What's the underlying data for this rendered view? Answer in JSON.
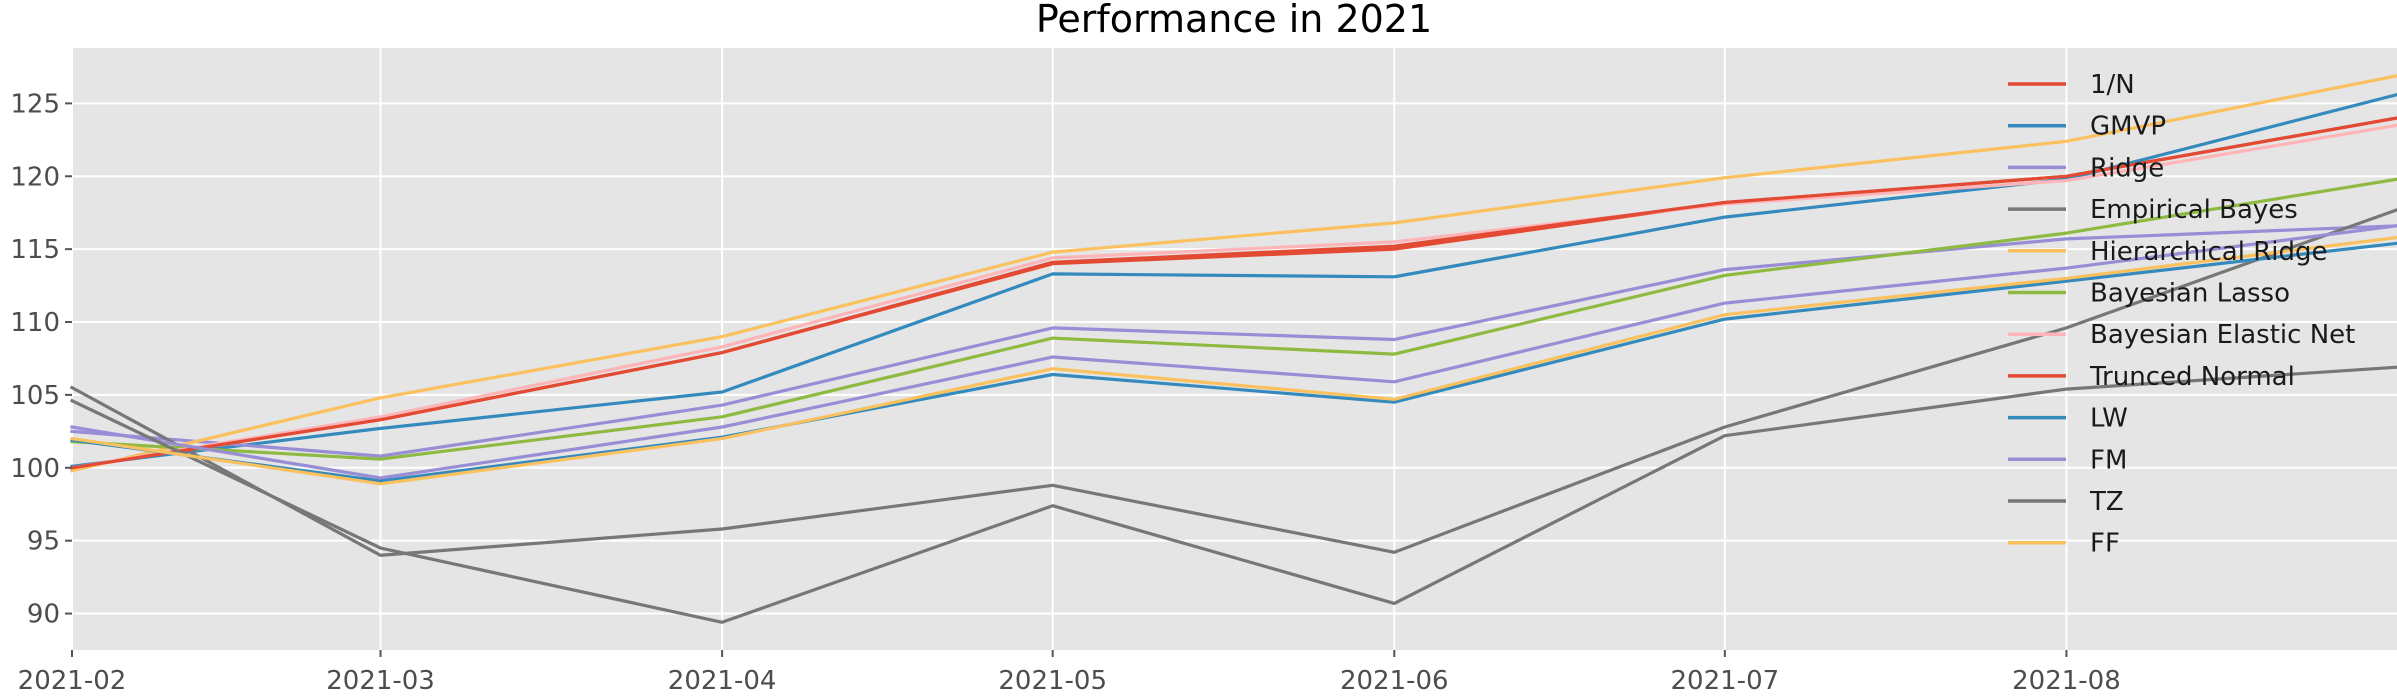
{
  "chart_data": {
    "type": "line",
    "title": "Performance in 2021",
    "xlabel": "",
    "ylabel": "",
    "x": [
      "2021-02-01",
      "2021-03-01",
      "2021-04-01",
      "2021-05-01",
      "2021-06-01",
      "2021-07-01",
      "2021-08-01",
      "2021-08-31"
    ],
    "xlim": [
      "2021-02-01",
      "2021-08-31"
    ],
    "ylim": [
      87.5,
      128.8
    ],
    "x_ticks": [
      "2021-02-01",
      "2021-03-01",
      "2021-04-01",
      "2021-05-01",
      "2021-06-01",
      "2021-07-01",
      "2021-08-01"
    ],
    "x_tick_labels": [
      "2021-02",
      "2021-03",
      "2021-04",
      "2021-05",
      "2021-06",
      "2021-07",
      "2021-08"
    ],
    "y_ticks": [
      90,
      95,
      100,
      105,
      110,
      115,
      120,
      125
    ],
    "y_tick_labels": [
      "90",
      "95",
      "100",
      "105",
      "110",
      "115",
      "120",
      "125"
    ],
    "grid": true,
    "style": "ggplot",
    "legend_position": "upper right",
    "series": [
      {
        "name": "1/N",
        "color": "#E24A33",
        "values": [
          100.0,
          103.3,
          107.9,
          114.0,
          115.0,
          118.2,
          120.0,
          124.0
        ]
      },
      {
        "name": "GMVP",
        "color": "#348ABD",
        "values": [
          100.1,
          102.7,
          105.2,
          113.3,
          113.1,
          117.2,
          119.8,
          125.6
        ]
      },
      {
        "name": "Ridge",
        "color": "#988ED5",
        "values": [
          102.5,
          100.8,
          104.3,
          109.6,
          108.8,
          113.6,
          115.7,
          116.6
        ]
      },
      {
        "name": "Empirical Bayes",
        "color": "#777777",
        "values": [
          105.5,
          94.0,
          95.8,
          98.8,
          94.2,
          102.8,
          109.6,
          117.7
        ]
      },
      {
        "name": "Hierarchical Ridge",
        "color": "#FBC15E",
        "values": [
          99.8,
          104.8,
          109.0,
          114.8,
          116.8,
          119.9,
          122.4,
          126.9
        ]
      },
      {
        "name": "Bayesian Lasso",
        "color": "#8EBA42",
        "values": [
          101.8,
          100.6,
          103.5,
          108.9,
          107.8,
          113.2,
          116.1,
          119.8
        ]
      },
      {
        "name": "Bayesian Elastic Net",
        "color": "#FFB5B8",
        "values": [
          100.0,
          103.5,
          108.3,
          114.4,
          115.5,
          118.1,
          119.7,
          123.5
        ]
      },
      {
        "name": "Trunced Normal",
        "color": "#E24A33",
        "values": [
          100.0,
          103.3,
          107.9,
          114.1,
          115.2,
          118.2,
          120.0,
          124.0
        ]
      },
      {
        "name": "LW",
        "color": "#348ABD",
        "values": [
          101.9,
          99.1,
          102.1,
          106.4,
          104.5,
          110.2,
          112.8,
          115.4
        ]
      },
      {
        "name": "FM",
        "color": "#988ED5",
        "values": [
          102.8,
          99.3,
          102.8,
          107.6,
          105.9,
          111.3,
          113.7,
          116.6
        ]
      },
      {
        "name": "TZ",
        "color": "#777777",
        "values": [
          104.6,
          94.5,
          89.4,
          97.4,
          90.7,
          102.2,
          105.4,
          106.9
        ]
      },
      {
        "name": "FF",
        "color": "#FBC15E",
        "values": [
          102.0,
          98.9,
          102.0,
          106.8,
          104.7,
          110.5,
          113.0,
          115.8
        ]
      }
    ]
  }
}
